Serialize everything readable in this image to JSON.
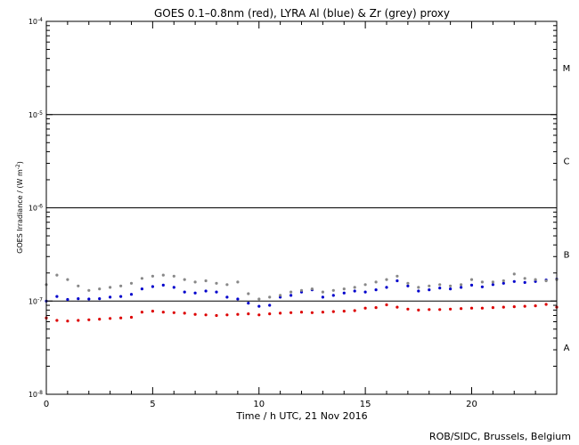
{
  "chart_data": {
    "type": "scatter",
    "title": "GOES 0.1–0.8nm (red), LYRA Al (blue) & Zr (grey) proxy",
    "xlabel": "Time / h UTC, 21 Nov 2016",
    "ylabel": "GOES Irradiance / (W m",
    "ylabel_superscript": "-2",
    "ylabel_close": ")",
    "footer": "ROB/SIDC, Brussels, Belgium",
    "x_range": [
      0,
      24
    ],
    "x_ticks": [
      {
        "value": 0,
        "label": "0"
      },
      {
        "value": 5,
        "label": "5"
      },
      {
        "value": 10,
        "label": "10"
      },
      {
        "value": 15,
        "label": "15"
      },
      {
        "value": 20,
        "label": "20"
      }
    ],
    "y_scale": "log",
    "y_range": [
      1e-08,
      0.0001
    ],
    "y_ticks": [
      {
        "value": 1e-08,
        "base": "10",
        "exp": "-8"
      },
      {
        "value": 1e-07,
        "base": "10",
        "exp": "-7"
      },
      {
        "value": 1e-06,
        "base": "10",
        "exp": "-6"
      },
      {
        "value": 1e-05,
        "base": "10",
        "exp": "-5"
      },
      {
        "value": 0.0001,
        "base": "10",
        "exp": "-4"
      }
    ],
    "flare_thresholds": [
      1e-07,
      1e-06,
      1e-05
    ],
    "flare_classes": [
      {
        "label": "A",
        "y": 3.2e-08
      },
      {
        "label": "B",
        "y": 3.2e-07
      },
      {
        "label": "C",
        "y": 3.2e-06
      },
      {
        "label": "M",
        "y": 3.2e-05
      }
    ],
    "series": [
      {
        "name": "GOES 0.1–0.8nm",
        "color": "#dd0000",
        "x": [
          0.0,
          0.5,
          1.0,
          1.5,
          2.0,
          2.5,
          3.0,
          3.5,
          4.0,
          4.5,
          5.0,
          5.5,
          6.0,
          6.5,
          7.0,
          7.5,
          8.0,
          8.5,
          9.0,
          9.5,
          10.0,
          10.5,
          11.0,
          11.5,
          12.0,
          12.5,
          13.0,
          13.5,
          14.0,
          14.5,
          15.0,
          15.5,
          16.0,
          16.5,
          17.0,
          17.5,
          18.0,
          18.5,
          19.0,
          19.5,
          20.0,
          20.5,
          21.0,
          21.5,
          22.0,
          22.5,
          23.0,
          23.5,
          24.0
        ],
        "y": [
          6.6e-08,
          6.2e-08,
          6.1e-08,
          6.2e-08,
          6.3e-08,
          6.4e-08,
          6.5e-08,
          6.6e-08,
          6.7e-08,
          7.6e-08,
          7.8e-08,
          7.6e-08,
          7.5e-08,
          7.4e-08,
          7.2e-08,
          7.1e-08,
          7e-08,
          7.1e-08,
          7.2e-08,
          7.3e-08,
          7.1e-08,
          7.3e-08,
          7.4e-08,
          7.5e-08,
          7.6e-08,
          7.5e-08,
          7.6e-08,
          7.7e-08,
          7.8e-08,
          7.9e-08,
          8.4e-08,
          8.5e-08,
          9.1e-08,
          8.6e-08,
          8.2e-08,
          8e-08,
          8.1e-08,
          8.1e-08,
          8.2e-08,
          8.3e-08,
          8.4e-08,
          8.4e-08,
          8.5e-08,
          8.6e-08,
          8.7e-08,
          8.8e-08,
          8.9e-08,
          9.2e-08,
          8.6e-08
        ]
      },
      {
        "name": "LYRA Al proxy",
        "color": "#0000cc",
        "x": [
          0.0,
          0.5,
          1.0,
          1.5,
          2.0,
          2.5,
          3.0,
          3.5,
          4.0,
          4.5,
          5.0,
          5.5,
          6.0,
          6.5,
          7.0,
          7.5,
          8.0,
          8.5,
          9.0,
          9.5,
          10.0,
          10.5,
          11.0,
          11.5,
          12.0,
          12.5,
          13.0,
          13.5,
          14.0,
          14.5,
          15.0,
          15.5,
          16.0,
          16.5,
          17.0,
          17.5,
          18.0,
          18.5,
          19.0,
          19.5,
          20.0,
          20.5,
          21.0,
          21.5,
          22.0,
          22.5,
          23.0,
          23.5,
          24.0
        ],
        "y": [
          1e-07,
          1.12e-07,
          1.04e-07,
          1.06e-07,
          1.05e-07,
          1.06e-07,
          1.1e-07,
          1.12e-07,
          1.18e-07,
          1.35e-07,
          1.43e-07,
          1.48e-07,
          1.4e-07,
          1.25e-07,
          1.22e-07,
          1.28e-07,
          1.25e-07,
          1.1e-07,
          1.05e-07,
          9.5e-08,
          8.8e-08,
          9e-08,
          1.1e-07,
          1.15e-07,
          1.25e-07,
          1.32e-07,
          1.1e-07,
          1.15e-07,
          1.22e-07,
          1.28e-07,
          1.25e-07,
          1.32e-07,
          1.4e-07,
          1.65e-07,
          1.45e-07,
          1.28e-07,
          1.32e-07,
          1.38e-07,
          1.35e-07,
          1.4e-07,
          1.48e-07,
          1.42e-07,
          1.5e-07,
          1.55e-07,
          1.62e-07,
          1.58e-07,
          1.62e-07,
          1.68e-07,
          1.72e-07
        ]
      },
      {
        "name": "LYRA Zr proxy",
        "color": "#888888",
        "x": [
          0.0,
          0.5,
          1.0,
          1.5,
          2.0,
          2.5,
          3.0,
          3.5,
          4.0,
          4.5,
          5.0,
          5.5,
          6.0,
          6.5,
          7.0,
          7.5,
          8.0,
          8.5,
          9.0,
          9.5,
          10.0,
          10.5,
          11.0,
          11.5,
          12.0,
          12.5,
          13.0,
          13.5,
          14.0,
          14.5,
          15.0,
          15.5,
          16.0,
          16.5,
          17.0,
          17.5,
          18.0,
          18.5,
          19.0,
          19.5,
          20.0,
          20.5,
          21.0,
          21.5,
          22.0,
          22.5,
          23.0,
          23.5,
          24.0
        ],
        "y": [
          1.5e-07,
          1.9e-07,
          1.7e-07,
          1.45e-07,
          1.3e-07,
          1.35e-07,
          1.4e-07,
          1.45e-07,
          1.55e-07,
          1.75e-07,
          1.85e-07,
          1.9e-07,
          1.85e-07,
          1.7e-07,
          1.6e-07,
          1.65e-07,
          1.55e-07,
          1.5e-07,
          1.6e-07,
          1.2e-07,
          1.05e-07,
          1.1e-07,
          1.15e-07,
          1.25e-07,
          1.3e-07,
          1.35e-07,
          1.25e-07,
          1.3e-07,
          1.35e-07,
          1.4e-07,
          1.5e-07,
          1.6e-07,
          1.7e-07,
          1.85e-07,
          1.55e-07,
          1.4e-07,
          1.45e-07,
          1.5e-07,
          1.45e-07,
          1.5e-07,
          1.7e-07,
          1.6e-07,
          1.6e-07,
          1.65e-07,
          1.95e-07,
          1.75e-07,
          1.7e-07,
          1.65e-07,
          1.7e-07
        ]
      }
    ]
  }
}
